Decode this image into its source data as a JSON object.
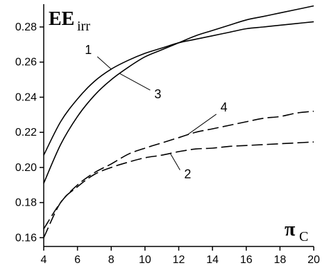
{
  "chart_data": {
    "type": "line",
    "ylabel": {
      "main": "EE",
      "sub": "irr"
    },
    "xlabel": {
      "main": "π",
      "sub": "C"
    },
    "xlim": [
      4,
      20
    ],
    "ylim": [
      0.155,
      0.293
    ],
    "x_ticks": [
      4,
      6,
      8,
      10,
      12,
      14,
      16,
      18,
      20
    ],
    "y_ticks": [
      "0.16",
      "0.18",
      "0.20",
      "0.22",
      "0.24",
      "0.26",
      "0.28"
    ],
    "grid": false,
    "series": [
      {
        "name": "1",
        "style": "solid",
        "x": [
          4,
          5,
          6,
          7,
          8,
          9,
          10,
          11,
          12,
          13,
          14,
          15,
          16,
          17,
          18,
          19,
          20
        ],
        "y": [
          0.207,
          0.226,
          0.239,
          0.249,
          0.256,
          0.261,
          0.265,
          0.268,
          0.271,
          0.273,
          0.275,
          0.277,
          0.279,
          0.28,
          0.281,
          0.282,
          0.283
        ]
      },
      {
        "name": "2",
        "style": "dashed",
        "x": [
          4,
          5,
          6,
          7,
          8,
          9,
          10,
          11,
          12,
          13,
          14,
          15,
          16,
          17,
          18,
          19,
          20
        ],
        "y": [
          0.16,
          0.18,
          0.189,
          0.196,
          0.2,
          0.203,
          0.2055,
          0.207,
          0.209,
          0.2105,
          0.211,
          0.212,
          0.2125,
          0.213,
          0.2135,
          0.214,
          0.2145
        ]
      },
      {
        "name": "3",
        "style": "solid",
        "x": [
          4,
          5,
          6,
          7,
          8,
          9,
          10,
          11,
          12,
          13,
          14,
          15,
          16,
          17,
          18,
          19,
          20
        ],
        "y": [
          0.191,
          0.213,
          0.229,
          0.241,
          0.25,
          0.257,
          0.263,
          0.267,
          0.271,
          0.275,
          0.278,
          0.281,
          0.284,
          0.286,
          0.288,
          0.29,
          0.292
        ]
      },
      {
        "name": "4",
        "style": "dashed",
        "x": [
          4,
          5,
          6,
          7,
          8,
          9,
          10,
          11,
          12,
          13,
          14,
          15,
          16,
          17,
          18,
          19,
          20
        ],
        "y": [
          0.165,
          0.18,
          0.19,
          0.197,
          0.202,
          0.2075,
          0.211,
          0.214,
          0.217,
          0.22,
          0.222,
          0.224,
          0.226,
          0.228,
          0.229,
          0.231,
          0.232
        ]
      }
    ],
    "annotations": [
      {
        "label": "1",
        "series": "1",
        "at_x": 8.0
      },
      {
        "label": "3",
        "series": "3",
        "at_x": 8.5
      },
      {
        "label": "4",
        "series": "4",
        "at_x": 12.5
      },
      {
        "label": "2",
        "series": "2",
        "at_x": 11.5
      }
    ]
  }
}
